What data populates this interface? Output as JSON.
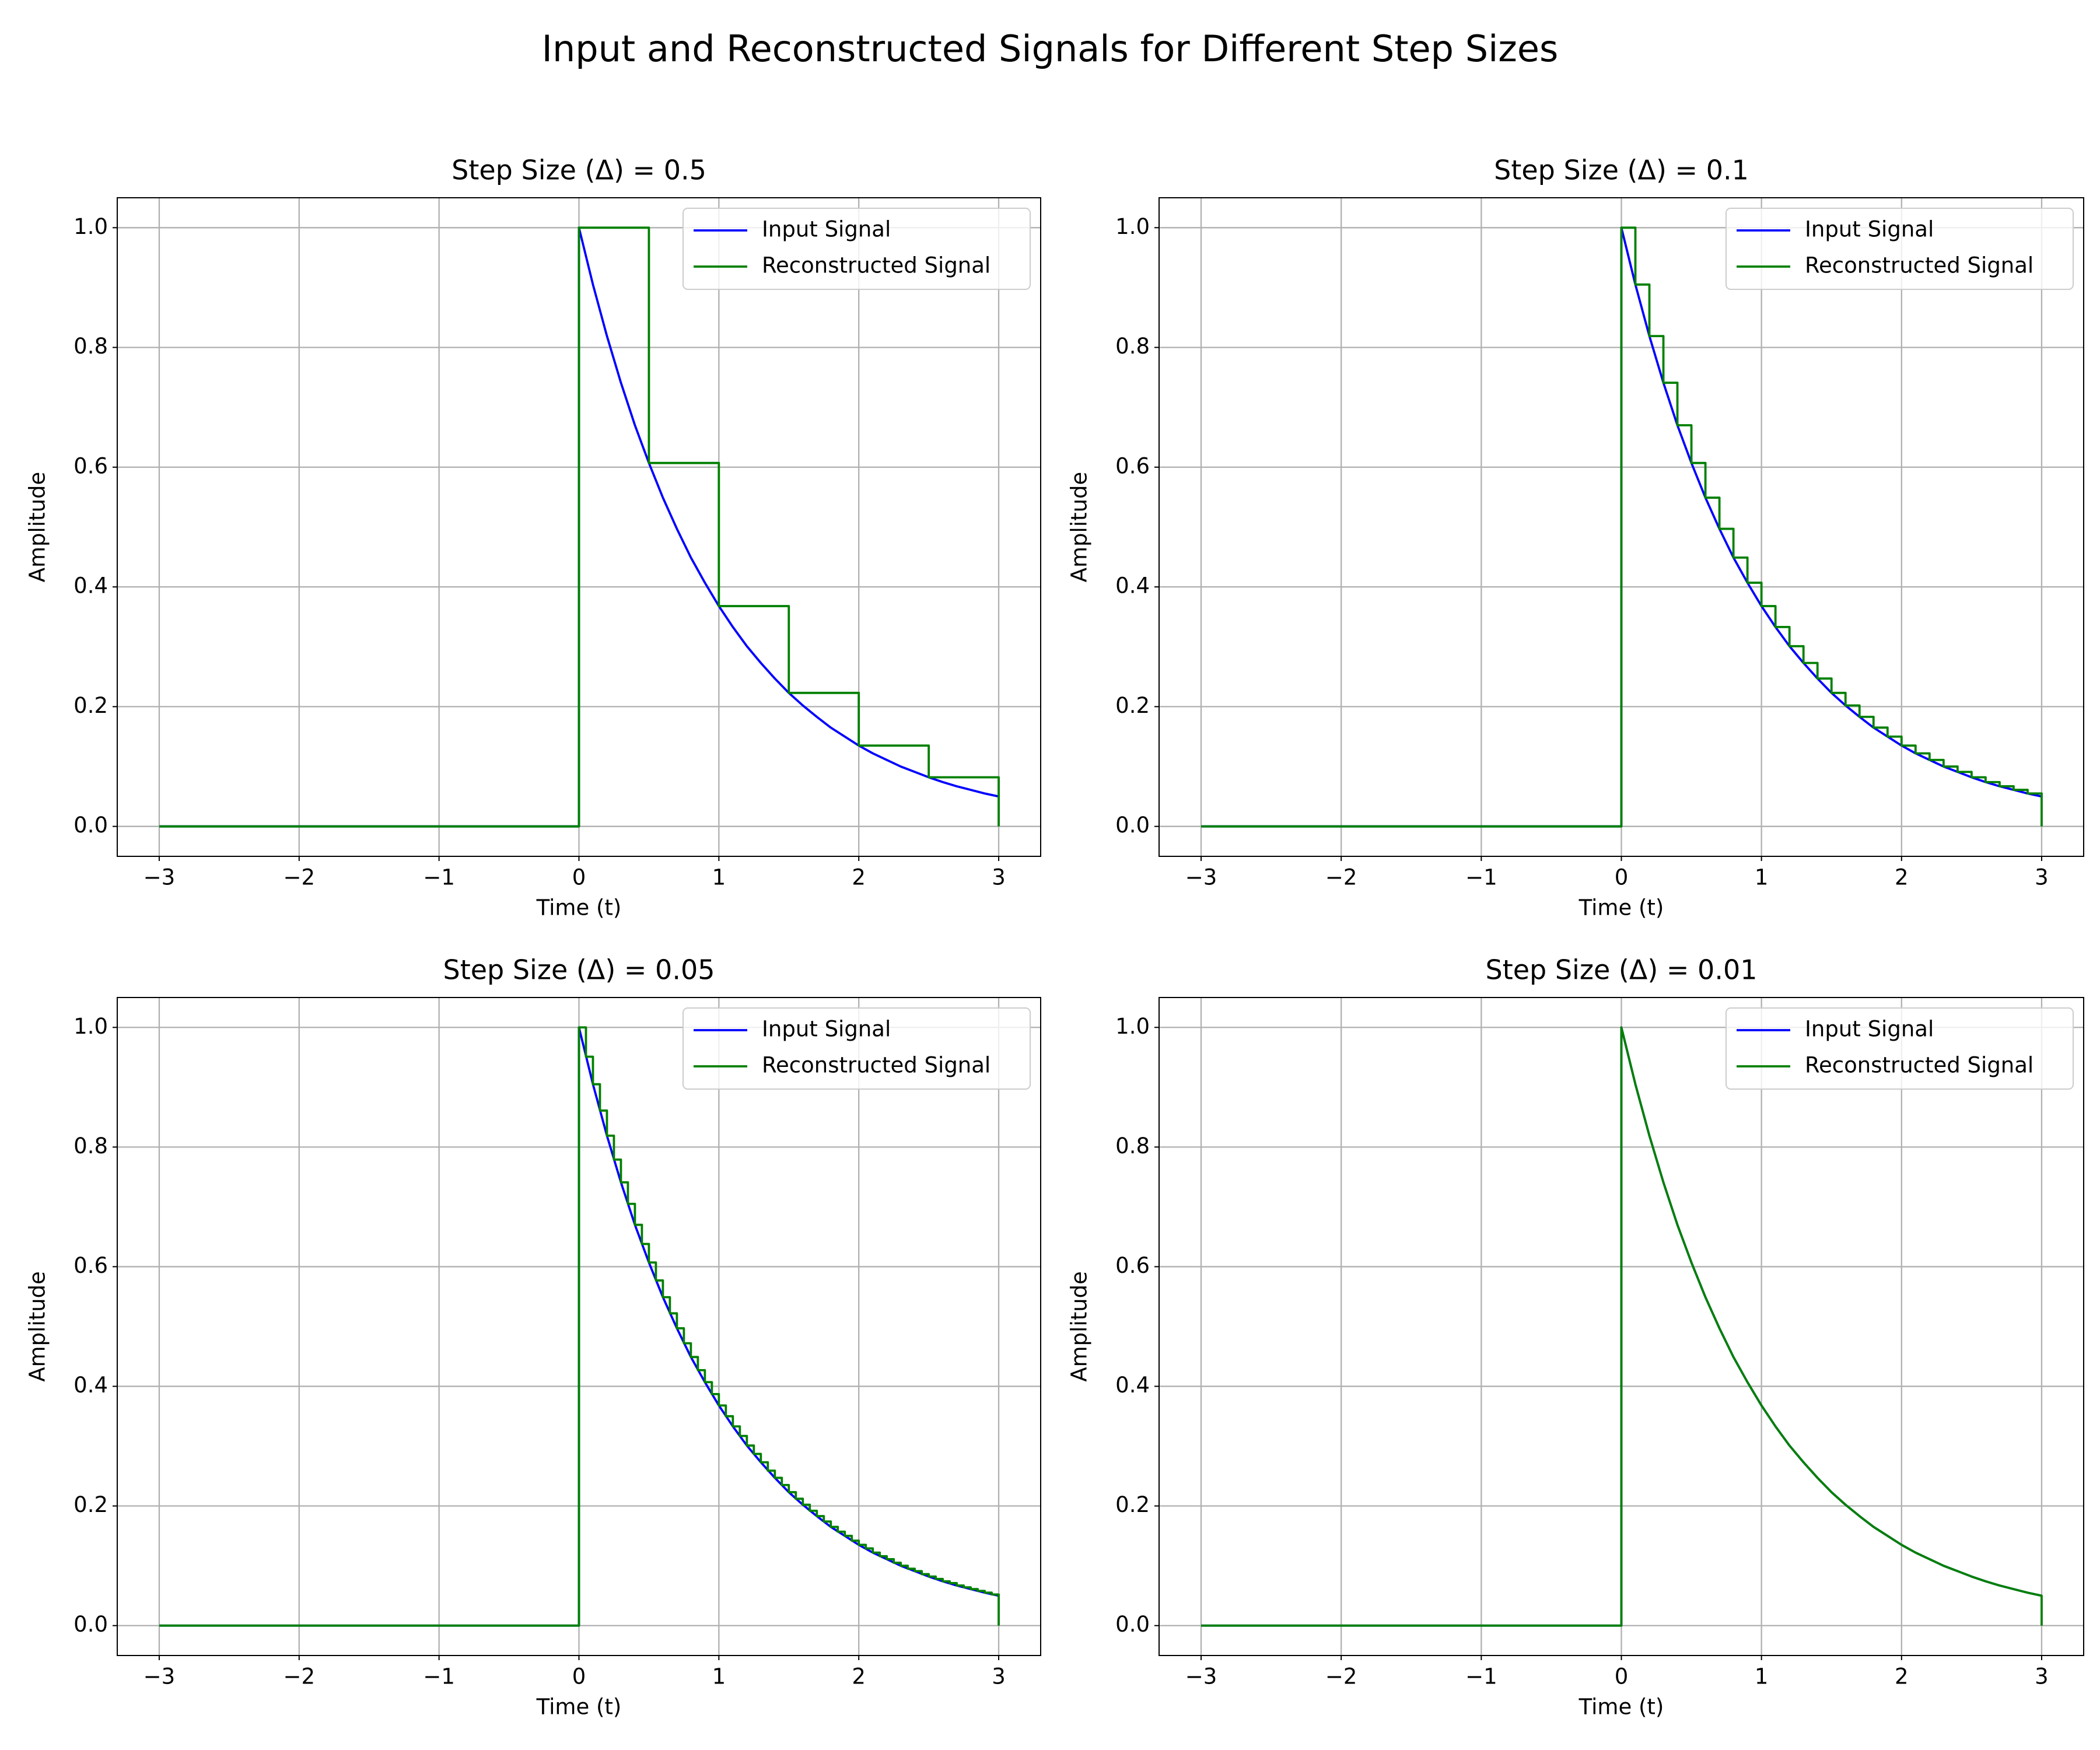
{
  "title": "Input and Reconstructed Signals for Different Step Sizes",
  "chart_data": [
    {
      "type": "line",
      "title": "Step Size (Δ) = 0.5",
      "x_label": "Time (t)",
      "y_label": "Amplitude",
      "xlim": [
        -3.3,
        3.3
      ],
      "ylim": [
        -0.05,
        1.05
      ],
      "grid": true,
      "legend": "upper right",
      "xticks": [
        {
          "value": -3,
          "label": "−3"
        },
        {
          "value": -2,
          "label": "−2"
        },
        {
          "value": -1,
          "label": "−1"
        },
        0,
        1,
        2,
        3
      ],
      "yticks": [
        {
          "value": 0,
          "label": "0.0"
        },
        0.2,
        0.4,
        0.6,
        0.8,
        {
          "value": 1,
          "label": "1.0"
        }
      ],
      "series": [
        {
          "name": "Input Signal",
          "color": "#0000ff",
          "x": [
            -3,
            0,
            0,
            0.1,
            0.2,
            0.3,
            0.4,
            0.5,
            0.6,
            0.7,
            0.8,
            0.9,
            1,
            1.1,
            1.2,
            1.3,
            1.4,
            1.5,
            1.6,
            1.7,
            1.8,
            1.9,
            2,
            2.1,
            2.2,
            2.3,
            2.4,
            2.5,
            2.6,
            2.7,
            2.8,
            2.9,
            3
          ],
          "values": [
            0,
            0,
            1,
            0.905,
            0.819,
            0.741,
            0.67,
            0.607,
            0.549,
            0.497,
            0.449,
            0.407,
            0.368,
            0.333,
            0.301,
            0.273,
            0.247,
            0.223,
            0.202,
            0.183,
            0.165,
            0.15,
            0.135,
            0.122,
            0.111,
            0.1,
            0.091,
            0.082,
            0.074,
            0.067,
            0.061,
            0.055,
            0.05
          ]
        },
        {
          "name": "Reconstructed Signal",
          "color": "#008000",
          "drawstyle": "steps-post",
          "x": [
            -3,
            0,
            0.5,
            1,
            1.5,
            2,
            2.5,
            3
          ],
          "values": [
            0,
            1,
            0.607,
            0.368,
            0.223,
            0.135,
            0.082,
            0
          ]
        }
      ]
    },
    {
      "type": "line",
      "title": "Step Size (Δ) = 0.1",
      "x_label": "Time (t)",
      "y_label": "Amplitude",
      "xlim": [
        -3.3,
        3.3
      ],
      "ylim": [
        -0.05,
        1.05
      ],
      "grid": true,
      "legend": "upper right",
      "xticks": [
        {
          "value": -3,
          "label": "−3"
        },
        {
          "value": -2,
          "label": "−2"
        },
        {
          "value": -1,
          "label": "−1"
        },
        0,
        1,
        2,
        3
      ],
      "yticks": [
        {
          "value": 0,
          "label": "0.0"
        },
        0.2,
        0.4,
        0.6,
        0.8,
        {
          "value": 1,
          "label": "1.0"
        }
      ],
      "series": [
        {
          "name": "Input Signal",
          "color": "#0000ff",
          "x": [
            -3,
            0,
            0,
            0.1,
            0.2,
            0.3,
            0.4,
            0.5,
            0.6,
            0.7,
            0.8,
            0.9,
            1,
            1.1,
            1.2,
            1.3,
            1.4,
            1.5,
            1.6,
            1.7,
            1.8,
            1.9,
            2,
            2.1,
            2.2,
            2.3,
            2.4,
            2.5,
            2.6,
            2.7,
            2.8,
            2.9,
            3
          ],
          "values": [
            0,
            0,
            1,
            0.905,
            0.819,
            0.741,
            0.67,
            0.607,
            0.549,
            0.497,
            0.449,
            0.407,
            0.368,
            0.333,
            0.301,
            0.273,
            0.247,
            0.223,
            0.202,
            0.183,
            0.165,
            0.15,
            0.135,
            0.122,
            0.111,
            0.1,
            0.091,
            0.082,
            0.074,
            0.067,
            0.061,
            0.055,
            0.05
          ]
        },
        {
          "name": "Reconstructed Signal",
          "color": "#008000",
          "drawstyle": "steps-post",
          "x": [
            -3,
            0,
            0.1,
            0.2,
            0.3,
            0.4,
            0.5,
            0.6,
            0.7,
            0.8,
            0.9,
            1,
            1.1,
            1.2,
            1.3,
            1.4,
            1.5,
            1.6,
            1.7,
            1.8,
            1.9,
            2,
            2.1,
            2.2,
            2.3,
            2.4,
            2.5,
            2.6,
            2.7,
            2.8,
            2.9,
            3
          ],
          "values": [
            0,
            1,
            0.905,
            0.819,
            0.741,
            0.67,
            0.607,
            0.549,
            0.497,
            0.449,
            0.407,
            0.368,
            0.333,
            0.301,
            0.273,
            0.247,
            0.223,
            0.202,
            0.183,
            0.165,
            0.15,
            0.135,
            0.122,
            0.111,
            0.1,
            0.091,
            0.082,
            0.074,
            0.067,
            0.061,
            0.055,
            0
          ]
        }
      ]
    },
    {
      "type": "line",
      "title": "Step Size (Δ) = 0.05",
      "x_label": "Time (t)",
      "y_label": "Amplitude",
      "xlim": [
        -3.3,
        3.3
      ],
      "ylim": [
        -0.05,
        1.05
      ],
      "grid": true,
      "legend": "upper right",
      "xticks": [
        {
          "value": -3,
          "label": "−3"
        },
        {
          "value": -2,
          "label": "−2"
        },
        {
          "value": -1,
          "label": "−1"
        },
        0,
        1,
        2,
        3
      ],
      "yticks": [
        {
          "value": 0,
          "label": "0.0"
        },
        0.2,
        0.4,
        0.6,
        0.8,
        {
          "value": 1,
          "label": "1.0"
        }
      ],
      "series": [
        {
          "name": "Input Signal",
          "color": "#0000ff",
          "x": [
            -3,
            0,
            0,
            0.1,
            0.2,
            0.3,
            0.4,
            0.5,
            0.6,
            0.7,
            0.8,
            0.9,
            1,
            1.1,
            1.2,
            1.3,
            1.4,
            1.5,
            1.6,
            1.7,
            1.8,
            1.9,
            2,
            2.1,
            2.2,
            2.3,
            2.4,
            2.5,
            2.6,
            2.7,
            2.8,
            2.9,
            3
          ],
          "values": [
            0,
            0,
            1,
            0.905,
            0.819,
            0.741,
            0.67,
            0.607,
            0.549,
            0.497,
            0.449,
            0.407,
            0.368,
            0.333,
            0.301,
            0.273,
            0.247,
            0.223,
            0.202,
            0.183,
            0.165,
            0.15,
            0.135,
            0.122,
            0.111,
            0.1,
            0.091,
            0.082,
            0.074,
            0.067,
            0.061,
            0.055,
            0.05
          ]
        },
        {
          "name": "Reconstructed Signal",
          "color": "#008000",
          "drawstyle": "steps-post",
          "x": [
            -3,
            0,
            0.05,
            0.1,
            0.15,
            0.2,
            0.25,
            0.3,
            0.35,
            0.4,
            0.45,
            0.5,
            0.55,
            0.6,
            0.65,
            0.7,
            0.75,
            0.8,
            0.85,
            0.9,
            0.95,
            1,
            1.05,
            1.1,
            1.15,
            1.2,
            1.25,
            1.3,
            1.35,
            1.4,
            1.45,
            1.5,
            1.55,
            1.6,
            1.65,
            1.7,
            1.75,
            1.8,
            1.85,
            1.9,
            1.95,
            2,
            2.05,
            2.1,
            2.15,
            2.2,
            2.25,
            2.3,
            2.35,
            2.4,
            2.45,
            2.5,
            2.55,
            2.6,
            2.65,
            2.7,
            2.75,
            2.8,
            2.85,
            2.9,
            2.95,
            3
          ],
          "values": [
            0,
            1,
            0.951,
            0.905,
            0.861,
            0.819,
            0.779,
            0.741,
            0.705,
            0.67,
            0.638,
            0.607,
            0.577,
            0.549,
            0.522,
            0.497,
            0.472,
            0.449,
            0.427,
            0.407,
            0.387,
            0.368,
            0.35,
            0.333,
            0.317,
            0.301,
            0.287,
            0.273,
            0.259,
            0.247,
            0.235,
            0.223,
            0.212,
            0.202,
            0.192,
            0.183,
            0.174,
            0.165,
            0.157,
            0.15,
            0.142,
            0.135,
            0.129,
            0.122,
            0.116,
            0.111,
            0.105,
            0.1,
            0.095,
            0.091,
            0.086,
            0.082,
            0.078,
            0.074,
            0.071,
            0.067,
            0.064,
            0.061,
            0.058,
            0.055,
            0.052,
            0
          ]
        }
      ]
    },
    {
      "type": "line",
      "title": "Step Size (Δ) = 0.01",
      "x_label": "Time (t)",
      "y_label": "Amplitude",
      "xlim": [
        -3.3,
        3.3
      ],
      "ylim": [
        -0.05,
        1.05
      ],
      "grid": true,
      "legend": "upper right",
      "xticks": [
        {
          "value": -3,
          "label": "−3"
        },
        {
          "value": -2,
          "label": "−2"
        },
        {
          "value": -1,
          "label": "−1"
        },
        0,
        1,
        2,
        3
      ],
      "yticks": [
        {
          "value": 0,
          "label": "0.0"
        },
        0.2,
        0.4,
        0.6,
        0.8,
        {
          "value": 1,
          "label": "1.0"
        }
      ],
      "series": [
        {
          "name": "Input Signal",
          "color": "#0000ff",
          "x": [
            -3,
            0,
            0,
            0.1,
            0.2,
            0.3,
            0.4,
            0.5,
            0.6,
            0.7,
            0.8,
            0.9,
            1,
            1.1,
            1.2,
            1.3,
            1.4,
            1.5,
            1.6,
            1.7,
            1.8,
            1.9,
            2,
            2.1,
            2.2,
            2.3,
            2.4,
            2.5,
            2.6,
            2.7,
            2.8,
            2.9,
            3
          ],
          "values": [
            0,
            0,
            1,
            0.905,
            0.819,
            0.741,
            0.67,
            0.607,
            0.549,
            0.497,
            0.449,
            0.407,
            0.368,
            0.333,
            0.301,
            0.273,
            0.247,
            0.223,
            0.202,
            0.183,
            0.165,
            0.15,
            0.135,
            0.122,
            0.111,
            0.1,
            0.091,
            0.082,
            0.074,
            0.067,
            0.061,
            0.055,
            0.05
          ]
        },
        {
          "name": "Reconstructed Signal",
          "color": "#008000",
          "x": [
            -3,
            0,
            0,
            0.1,
            0.2,
            0.3,
            0.4,
            0.5,
            0.6,
            0.7,
            0.8,
            0.9,
            1,
            1.1,
            1.2,
            1.3,
            1.4,
            1.5,
            1.6,
            1.7,
            1.8,
            1.9,
            2,
            2.1,
            2.2,
            2.3,
            2.4,
            2.5,
            2.6,
            2.7,
            2.8,
            2.9,
            3,
            3
          ],
          "values": [
            0,
            0,
            1,
            0.905,
            0.819,
            0.741,
            0.67,
            0.607,
            0.549,
            0.497,
            0.449,
            0.407,
            0.368,
            0.333,
            0.301,
            0.273,
            0.247,
            0.223,
            0.202,
            0.183,
            0.165,
            0.15,
            0.135,
            0.122,
            0.111,
            0.1,
            0.091,
            0.082,
            0.074,
            0.067,
            0.061,
            0.055,
            0.05,
            0
          ]
        }
      ]
    }
  ]
}
